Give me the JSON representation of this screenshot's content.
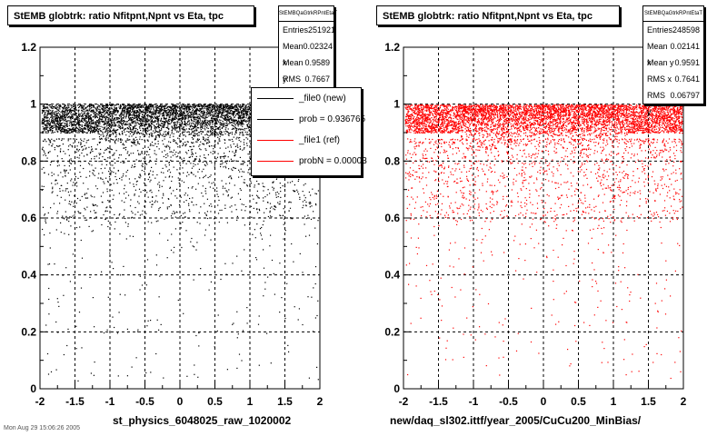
{
  "chart_data": [
    {
      "type": "scatter",
      "title": "StEMB globtrk: ratio Nfitpnt,Npnt vs Eta, tpc",
      "xlabel": "st_physics_6048025_raw_1020002",
      "ylabel": "",
      "xlim": [
        -2,
        2
      ],
      "ylim": [
        0,
        1.2
      ],
      "x_ticks": [
        "-2",
        "-1.5",
        "-1",
        "-0.5",
        "0",
        "0.5",
        "1",
        "1.5",
        "2"
      ],
      "y_ticks": [
        "0",
        "0.2",
        "0.4",
        "0.6",
        "0.8",
        "1",
        "1.2"
      ],
      "grid": true,
      "marker_color": "#000000",
      "band": {
        "y_min": 0.88,
        "y_max": 1.0,
        "description": "dense"
      },
      "stats": {
        "name": "StEMBQaGtrkRPntEtaT",
        "rows": [
          {
            "label": "Entries",
            "value": "251921"
          },
          {
            "label": "Mean x",
            "value": "0.02324"
          },
          {
            "label": "Mean y",
            "value": "0.9589"
          },
          {
            "label": "RMS x",
            "value": "0.7667"
          }
        ]
      },
      "legend": {
        "placement": "top-right",
        "entries": [
          {
            "label": "_file0 (new)",
            "color": "#000000"
          },
          {
            "label": "prob = 0.936765",
            "color": "#000000"
          },
          {
            "label": "_file1 (ref)",
            "color": "#ff0000"
          },
          {
            "label": "probN = 0.00003",
            "color": "#ff0000"
          }
        ]
      }
    },
    {
      "type": "scatter",
      "title": "StEMB globtrk: ratio Nfitpnt,Npnt vs Eta, tpc",
      "xlabel": "new/daq_sl302.ittf/year_2005/CuCu200_MinBias/",
      "ylabel": "",
      "xlim": [
        -2,
        2
      ],
      "ylim": [
        0,
        1.2
      ],
      "x_ticks": [
        "-2",
        "-1.5",
        "-1",
        "-0.5",
        "0",
        "0.5",
        "1",
        "1.5",
        "2"
      ],
      "y_ticks": [
        "0",
        "0.2",
        "0.4",
        "0.6",
        "0.8",
        "1",
        "1.2"
      ],
      "grid": true,
      "marker_color": "#ff0000",
      "band": {
        "y_min": 0.88,
        "y_max": 1.0,
        "description": "dense"
      },
      "stats": {
        "name": "StEMBQaGtrkRPntEtaT",
        "rows": [
          {
            "label": "Entries",
            "value": "248598"
          },
          {
            "label": "Mean x",
            "value": "0.02141"
          },
          {
            "label": "Mean y",
            "value": "0.9591"
          },
          {
            "label": "RMS x",
            "value": "0.7641"
          },
          {
            "label": "RMS y",
            "value": "0.06797"
          }
        ]
      }
    }
  ],
  "footer": "Mon Aug 29 15:06:26 2005"
}
